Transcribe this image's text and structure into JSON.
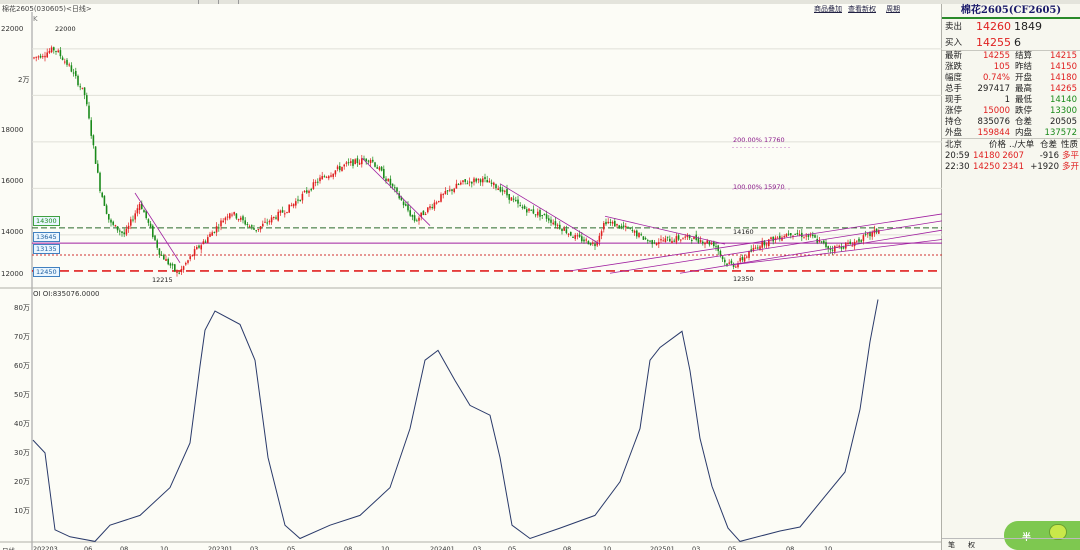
{
  "window": {
    "controls": [
      "minimize",
      "restore",
      "close"
    ]
  },
  "header": {
    "title": "棉花2605(030605)<日线>",
    "buttons": [
      "商品叠加",
      "查看新权",
      "周期"
    ]
  },
  "corner_mark": "K",
  "price_axis": {
    "ticks": [
      "22000",
      "2万",
      "18000",
      "16000",
      "14000",
      "12000"
    ]
  },
  "oi_axis": {
    "ticks": [
      "80万",
      "70万",
      "60万",
      "50万",
      "40万",
      "30万",
      "20万",
      "10万"
    ]
  },
  "x_axis": {
    "ticks": [
      "202203",
      "06",
      "08",
      "10",
      "202301",
      "03",
      "05",
      "08",
      "10",
      "202401",
      "03",
      "05",
      "08",
      "10",
      "202501",
      "03",
      "05",
      "08",
      "10"
    ]
  },
  "bottom_left_label": "日线",
  "oi_indicator_label": "OI  OI:835076.0000",
  "annotations": {
    "high": "22000",
    "low_2022": "12215",
    "low_2025": "12350",
    "mark_14160": "14160",
    "fib_200": "200.00%  17760",
    "fib_100": "100.00%  15970"
  },
  "level_boxes": [
    "14300",
    "13645",
    "13135",
    "12450"
  ],
  "chart_data": {
    "type": "line",
    "title": "棉花2605(030605)<日线>",
    "price": {
      "x": [
        "202203",
        "06",
        "08",
        "10",
        "202301",
        "03",
        "05",
        "08",
        "10",
        "202401",
        "03",
        "05",
        "08",
        "10",
        "202501",
        "03",
        "05",
        "08",
        "10"
      ],
      "approx_close": [
        21800,
        20600,
        14200,
        13200,
        13700,
        14600,
        14800,
        16800,
        16200,
        15000,
        16000,
        15200,
        14400,
        13600,
        13500,
        13800,
        12800,
        13800,
        13500
      ],
      "labeled_high": 22000,
      "labeled_lows": [
        12215,
        12350
      ],
      "ylim": [
        11800,
        23500
      ]
    },
    "open_interest": {
      "label": "OI",
      "current": 835076,
      "x": [
        "202203",
        "06",
        "08",
        "10",
        "202301",
        "03",
        "05",
        "08",
        "10",
        "202401",
        "03",
        "05",
        "08",
        "10",
        "202501",
        "03",
        "05",
        "08",
        "10"
      ],
      "approx_values_wan": [
        36,
        2,
        9,
        22,
        75,
        52,
        5,
        14,
        32,
        65,
        45,
        4,
        8,
        30,
        70,
        25,
        2,
        6,
        83
      ],
      "ylim": [
        0,
        85
      ]
    }
  },
  "quote_panel": {
    "title": "棉花2605(CF2605)",
    "ask": {
      "label": "卖出",
      "price": "14260",
      "volume": "1849"
    },
    "bid": {
      "label": "买入",
      "price": "14255",
      "volume": "6"
    },
    "stats": [
      {
        "l1": "最新",
        "v1": "14255",
        "c1": "red",
        "l2": "结算",
        "v2": "14215",
        "c2": "red"
      },
      {
        "l1": "涨跌",
        "v1": "105",
        "c1": "red",
        "l2": "昨结",
        "v2": "14150",
        "c2": "red"
      },
      {
        "l1": "幅度",
        "v1": "0.74%",
        "c1": "red",
        "l2": "开盘",
        "v2": "14180",
        "c2": "red"
      },
      {
        "l1": "总手",
        "v1": "297417",
        "c1": "blk",
        "l2": "最高",
        "v2": "14265",
        "c2": "red"
      },
      {
        "l1": "现手",
        "v1": "1",
        "c1": "blk",
        "l2": "最低",
        "v2": "14140",
        "c2": "green"
      },
      {
        "l1": "涨停",
        "v1": "15000",
        "c1": "red",
        "l2": "跌停",
        "v2": "13300",
        "c2": "green"
      },
      {
        "l1": "持仓",
        "v1": "835076",
        "c1": "blk",
        "l2": "仓差",
        "v2": "20505",
        "c2": "blk"
      },
      {
        "l1": "外盘",
        "v1": "159844",
        "c1": "red",
        "l2": "内盘",
        "v2": "137572",
        "c2": "green"
      }
    ],
    "ticks_header": {
      "region": "北京",
      "price": "价格",
      "vol": "../大单",
      "oi": "仓差",
      "nature": "性质"
    },
    "ticks": [
      {
        "time": "20:59",
        "price": "14180",
        "vol": "2607",
        "oi": "-916",
        "nature": "多平"
      },
      {
        "time": "22:30",
        "price": "14250",
        "vol": "2341",
        "oi": "+1920",
        "nature": "多开"
      }
    ],
    "bottom_tabs": [
      "笔",
      "权"
    ],
    "badge": "半"
  },
  "colors": {
    "up": "#e02020",
    "down": "#1a8a1a",
    "trendline": "#a020a0",
    "dashed_level": "#e02020",
    "oi_line": "#2a3a6a"
  }
}
